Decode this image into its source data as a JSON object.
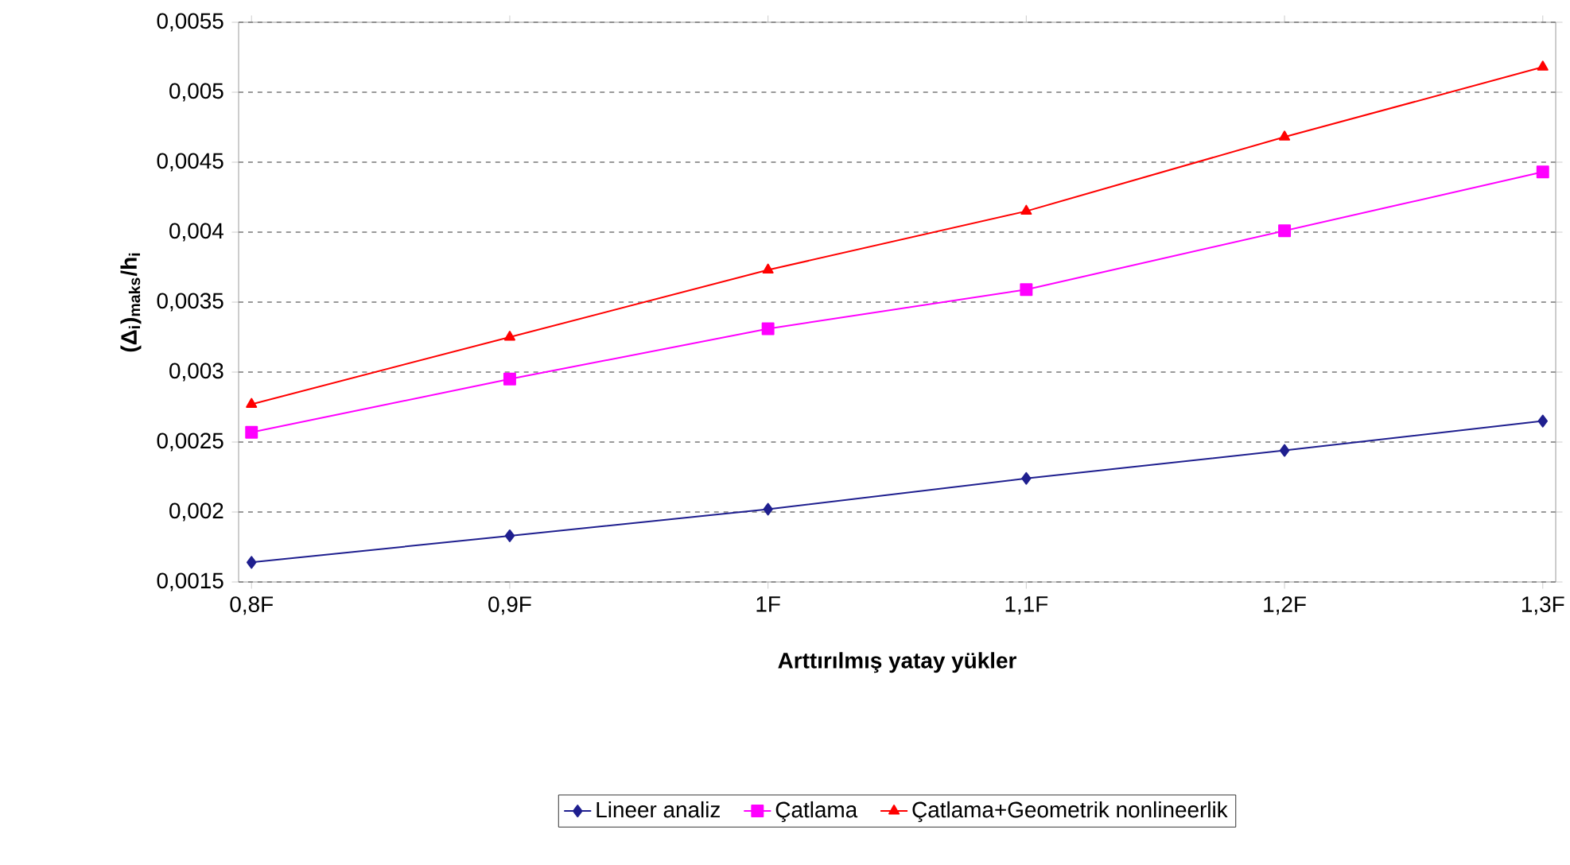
{
  "chart_data": {
    "type": "line",
    "xlabel": "Arttırılmış yatay yükler",
    "ylabel": "(Δ$_{i}$)$_{maks}$/h$_{i}$",
    "categories": [
      "0,8F",
      "0,9F",
      "1F",
      "1,1F",
      "1,2F",
      "1,3F"
    ],
    "series": [
      {
        "name": "Lineer analiz",
        "color": "#1f1f8f",
        "marker": "diamond",
        "values": [
          0.00164,
          0.00183,
          0.00202,
          0.00224,
          0.00244,
          0.00265
        ]
      },
      {
        "name": "Çatlama",
        "color": "#ff00ff",
        "marker": "square",
        "values": [
          0.00257,
          0.00295,
          0.00331,
          0.00359,
          0.00401,
          0.00443
        ]
      },
      {
        "name": "Çatlama+Geometrik nonlineerlik",
        "color": "#ff0000",
        "marker": "triangle",
        "values": [
          0.00277,
          0.00325,
          0.00373,
          0.00415,
          0.00468,
          0.00518
        ]
      }
    ],
    "ylim": [
      0.0015,
      0.0055
    ],
    "yticks": [
      {
        "value": 0.0015,
        "label": "0,0015"
      },
      {
        "value": 0.002,
        "label": "0,002"
      },
      {
        "value": 0.0025,
        "label": "0,0025"
      },
      {
        "value": 0.003,
        "label": "0,003"
      },
      {
        "value": 0.0035,
        "label": "0,0035"
      },
      {
        "value": 0.004,
        "label": "0,004"
      },
      {
        "value": 0.0045,
        "label": "0,0045"
      },
      {
        "value": 0.005,
        "label": "0,005"
      },
      {
        "value": 0.0055,
        "label": "0,0055"
      }
    ],
    "grid": "y",
    "legend": "bottom",
    "line_style": "solid"
  }
}
